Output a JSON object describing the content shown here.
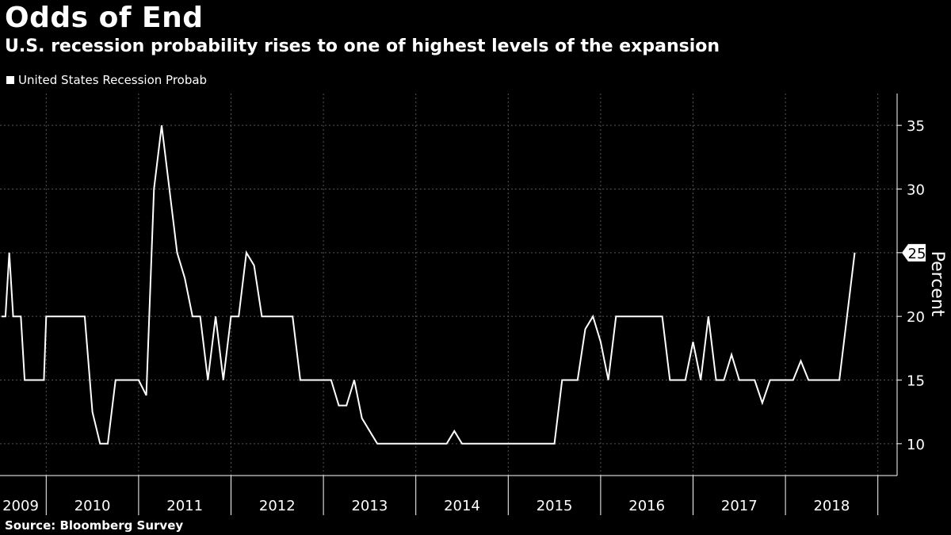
{
  "chart_data": {
    "type": "line",
    "title": "Odds of End",
    "subtitle": "U.S. recession probability rises to one of highest levels of the expansion",
    "legend": [
      "United States Recession Probab"
    ],
    "legend_position": "top-left",
    "ylabel": "Percent",
    "ylim": [
      7.5,
      37.5
    ],
    "yticks": [
      10,
      15,
      20,
      25,
      30,
      35
    ],
    "y_axis_side": "right",
    "grid": true,
    "x_axis": [
      "2009",
      "2010",
      "2011",
      "2012",
      "2013",
      "2014",
      "2015",
      "2016",
      "2017",
      "2018"
    ],
    "last_value_label": "25",
    "series": [
      {
        "name": "United States Recession Probab",
        "points": [
          [
            "2009-01",
            20
          ],
          [
            "2009-02",
            20
          ],
          [
            "2009-03",
            25
          ],
          [
            "2009-04",
            20
          ],
          [
            "2009-06",
            20
          ],
          [
            "2009-07",
            15
          ],
          [
            "2009-12",
            15
          ],
          [
            "2010-01",
            20
          ],
          [
            "2010-03",
            20
          ],
          [
            "2010-06",
            20
          ],
          [
            "2010-07",
            12.5
          ],
          [
            "2010-08",
            10
          ],
          [
            "2010-09",
            10
          ],
          [
            "2010-10",
            15
          ],
          [
            "2011-01",
            15
          ],
          [
            "2011-02",
            13.8
          ],
          [
            "2011-03",
            30
          ],
          [
            "2011-04",
            35
          ],
          [
            "2011-06",
            25
          ],
          [
            "2011-07",
            23
          ],
          [
            "2011-08",
            20
          ],
          [
            "2011-09",
            20
          ],
          [
            "2011-10",
            15
          ],
          [
            "2011-11",
            20
          ],
          [
            "2011-12",
            15
          ],
          [
            "2012-01",
            20
          ],
          [
            "2012-02",
            20
          ],
          [
            "2012-03",
            25
          ],
          [
            "2012-04",
            24
          ],
          [
            "2012-05",
            20
          ],
          [
            "2012-09",
            20
          ],
          [
            "2012-10",
            15
          ],
          [
            "2013-02",
            15
          ],
          [
            "2013-03",
            13
          ],
          [
            "2013-04",
            13
          ],
          [
            "2013-05",
            15
          ],
          [
            "2013-06",
            12
          ],
          [
            "2013-08",
            10
          ],
          [
            "2014-05",
            10
          ],
          [
            "2014-06",
            11
          ],
          [
            "2014-07",
            10
          ],
          [
            "2015-07",
            10
          ],
          [
            "2015-08",
            15
          ],
          [
            "2015-10",
            15
          ],
          [
            "2015-11",
            19
          ],
          [
            "2015-12",
            20
          ],
          [
            "2016-01",
            18
          ],
          [
            "2016-02",
            15
          ],
          [
            "2016-03",
            20
          ],
          [
            "2016-09",
            20
          ],
          [
            "2016-10",
            15
          ],
          [
            "2016-12",
            15
          ],
          [
            "2017-01",
            18
          ],
          [
            "2017-02",
            15
          ],
          [
            "2017-03",
            20
          ],
          [
            "2017-04",
            15
          ],
          [
            "2017-05",
            15
          ],
          [
            "2017-06",
            17
          ],
          [
            "2017-07",
            15
          ],
          [
            "2017-09",
            15
          ],
          [
            "2017-10",
            13.2
          ],
          [
            "2017-11",
            15
          ],
          [
            "2018-02",
            15
          ],
          [
            "2018-03",
            16.5
          ],
          [
            "2018-04",
            15
          ],
          [
            "2018-08",
            15
          ],
          [
            "2018-09",
            20
          ],
          [
            "2018-10",
            25
          ]
        ]
      }
    ]
  },
  "source": "Source: Bloomberg Survey",
  "colors": {
    "background": "#000000",
    "line": "#ffffff",
    "grid": "#555555"
  }
}
